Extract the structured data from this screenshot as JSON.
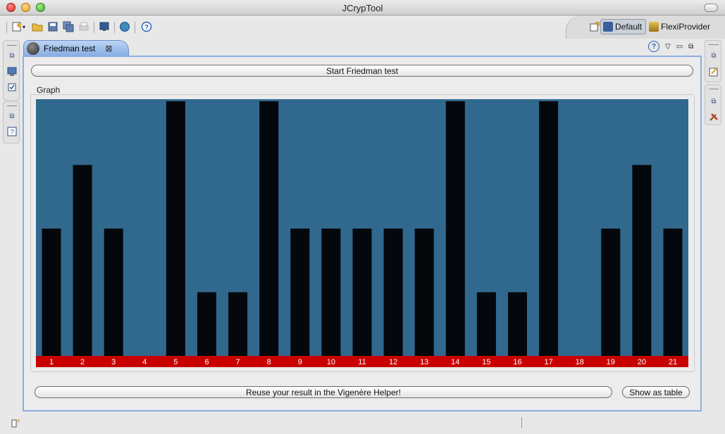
{
  "window": {
    "title": "JCrypTool"
  },
  "perspectives": {
    "default_label": "Default",
    "flexi_label": "FlexiProvider"
  },
  "view": {
    "tab_label": "Friedman test",
    "help_label": "?"
  },
  "panel": {
    "start_label": "Start Friedman test",
    "graph_label": "Graph",
    "reuse_label": "Reuse your result in the Vigenère Helper!",
    "table_label": "Show as table"
  },
  "colors": {
    "plot_bg": "#31688e",
    "bar": "#04080c",
    "label_band": "#c80000",
    "label_text": "#ffffff",
    "panel_border": "#8eaee0"
  },
  "chart_data": {
    "type": "bar",
    "title": "Graph",
    "categories": [
      "1",
      "2",
      "3",
      "4",
      "5",
      "6",
      "7",
      "8",
      "9",
      "10",
      "11",
      "12",
      "13",
      "14",
      "15",
      "16",
      "17",
      "18",
      "19",
      "20",
      "21"
    ],
    "values": [
      2,
      3,
      2,
      0,
      4,
      1,
      1,
      4,
      2,
      2,
      2,
      2,
      2,
      4,
      1,
      1,
      4,
      0,
      2,
      3,
      2
    ],
    "ylim": [
      0,
      4
    ],
    "xlabel": "",
    "ylabel": "",
    "grid": false
  }
}
